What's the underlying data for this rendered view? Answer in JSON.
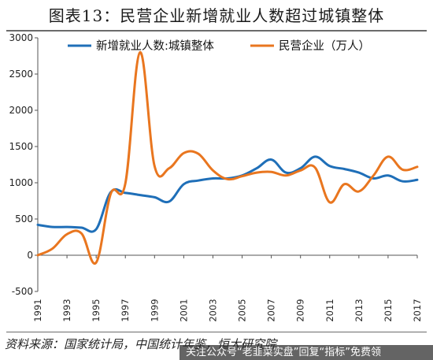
{
  "title": "图表13：民营企业新增就业人数超过城镇整体",
  "source": "资料来源：国家统计局，中国统计年鉴，恒大研究院",
  "watermark": "关注公众号“老韭菜实盘”回复“指标”免费领",
  "colors": {
    "blue": "#1f6fb8",
    "orange": "#e9761f",
    "axis": "#555555",
    "text": "#222222"
  },
  "chart_data": {
    "type": "line",
    "title": "",
    "xlabel": "",
    "ylabel": "",
    "ylim": [
      -500,
      3000
    ],
    "yticks": [
      -500,
      0,
      500,
      1000,
      1500,
      2000,
      2500,
      3000
    ],
    "xlim": [
      1991,
      2017
    ],
    "xticks": [
      1991,
      1993,
      1995,
      1997,
      1999,
      2001,
      2003,
      2005,
      2007,
      2009,
      2011,
      2013,
      2015,
      2017
    ],
    "grid": false,
    "legend_position": "top",
    "series": [
      {
        "name": "新增就业人数:城镇整体",
        "color": "#1f6fb8",
        "points": [
          [
            1991,
            420
          ],
          [
            1992,
            390
          ],
          [
            1993,
            390
          ],
          [
            1994,
            380
          ],
          [
            1995,
            360
          ],
          [
            1996,
            870
          ],
          [
            1997,
            860
          ],
          [
            1998,
            830
          ],
          [
            1999,
            800
          ],
          [
            2000,
            740
          ],
          [
            2001,
            980
          ],
          [
            2002,
            1030
          ],
          [
            2003,
            1060
          ],
          [
            2004,
            1060
          ],
          [
            2005,
            1100
          ],
          [
            2006,
            1200
          ],
          [
            2007,
            1320
          ],
          [
            2008,
            1140
          ],
          [
            2009,
            1200
          ],
          [
            2010,
            1360
          ],
          [
            2011,
            1230
          ],
          [
            2012,
            1190
          ],
          [
            2013,
            1140
          ],
          [
            2014,
            1060
          ],
          [
            2015,
            1100
          ],
          [
            2016,
            1020
          ],
          [
            2017,
            1040
          ]
        ]
      },
      {
        "name": "民营企业（万人）",
        "color": "#e9761f",
        "points": [
          [
            1991,
            0
          ],
          [
            1992,
            90
          ],
          [
            1993,
            290
          ],
          [
            1994,
            300
          ],
          [
            1995,
            -100
          ],
          [
            1996,
            850
          ],
          [
            1997,
            990
          ],
          [
            1998,
            2800
          ],
          [
            1999,
            1230
          ],
          [
            2000,
            1200
          ],
          [
            2001,
            1410
          ],
          [
            2002,
            1400
          ],
          [
            2003,
            1170
          ],
          [
            2004,
            1050
          ],
          [
            2005,
            1090
          ],
          [
            2006,
            1140
          ],
          [
            2007,
            1150
          ],
          [
            2008,
            1100
          ],
          [
            2009,
            1170
          ],
          [
            2010,
            1210
          ],
          [
            2011,
            730
          ],
          [
            2012,
            980
          ],
          [
            2013,
            880
          ],
          [
            2014,
            1100
          ],
          [
            2015,
            1360
          ],
          [
            2016,
            1180
          ],
          [
            2017,
            1220
          ]
        ]
      }
    ]
  }
}
